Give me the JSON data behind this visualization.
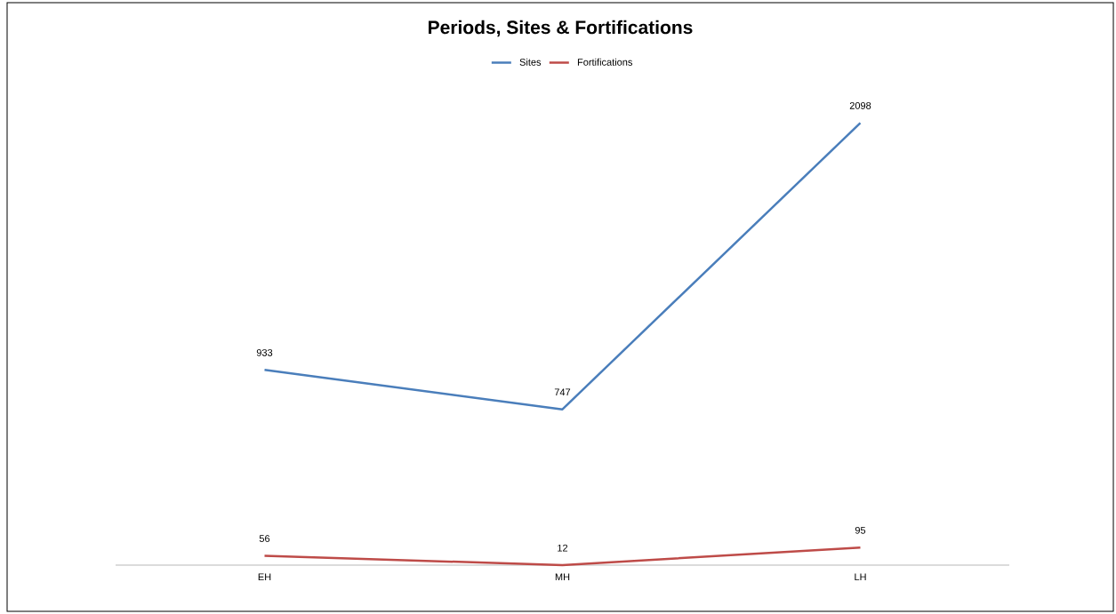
{
  "chart_data": {
    "type": "line",
    "title": "Periods, Sites & Fortifications",
    "categories": [
      "EH",
      "MH",
      "LH"
    ],
    "series": [
      {
        "name": "Sites",
        "color": "#4a7ebb",
        "values": [
          933,
          747,
          2098
        ]
      },
      {
        "name": "Fortifications",
        "color": "#be4b48",
        "values": [
          56,
          12,
          95
        ]
      }
    ],
    "tick_labels": "x",
    "data_labels": true,
    "legend": "top",
    "grid": false,
    "marker": "none"
  }
}
